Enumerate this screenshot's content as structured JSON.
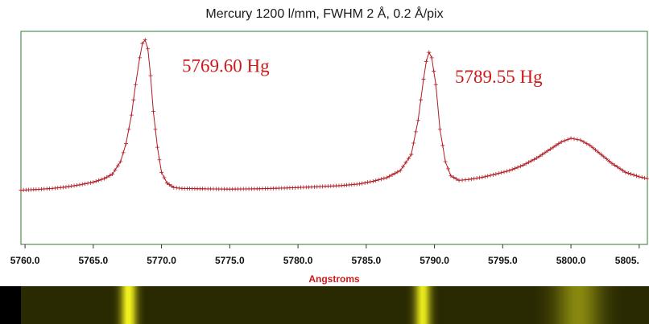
{
  "chart_data": {
    "type": "line",
    "title": "Mercury 1200 l/mm, FWHM 2 Å, 0.2 Å/pix",
    "xlabel": "Angstroms",
    "ylabel": "",
    "xlim": [
      5759.7,
      5805.6
    ],
    "ylim": [
      0,
      1.0
    ],
    "x_ticks": [
      5760,
      5765,
      5770,
      5775,
      5780,
      5785,
      5790,
      5795,
      5800,
      5805
    ],
    "x_tick_labels": [
      "5760.0",
      "5765.0",
      "5770.0",
      "5775.0",
      "5780.0",
      "5785.0",
      "5790.0",
      "5795.0",
      "5800.0",
      "5805."
    ],
    "grid": false,
    "legend": "none",
    "series": [
      {
        "marker": "plus",
        "color": "#b01c24",
        "x": [
          5759.7,
          5761.0,
          5762.0,
          5763.0,
          5764.0,
          5765.0,
          5765.8,
          5766.4,
          5767.0,
          5767.4,
          5767.8,
          5768.1,
          5768.4,
          5768.6,
          5768.8,
          5769.0,
          5769.2,
          5769.4,
          5769.7,
          5770.0,
          5770.4,
          5770.9,
          5771.5,
          5773.0,
          5775.0,
          5777.0,
          5779.0,
          5781.0,
          5783.0,
          5784.5,
          5785.5,
          5786.5,
          5787.5,
          5788.3,
          5788.8,
          5789.2,
          5789.4,
          5789.6,
          5789.8,
          5790.1,
          5790.4,
          5790.8,
          5791.2,
          5791.8,
          5792.5,
          5793.5,
          5794.5,
          5795.5,
          5796.5,
          5797.5,
          5798.5,
          5799.3,
          5800.0,
          5800.7,
          5801.4,
          5802.2,
          5803.0,
          5804.0,
          5805.0,
          5805.6
        ],
        "y": [
          0.16,
          0.165,
          0.17,
          0.178,
          0.19,
          0.205,
          0.225,
          0.25,
          0.32,
          0.42,
          0.58,
          0.75,
          0.9,
          0.98,
          1.0,
          0.95,
          0.8,
          0.6,
          0.4,
          0.26,
          0.2,
          0.175,
          0.17,
          0.168,
          0.166,
          0.168,
          0.172,
          0.178,
          0.185,
          0.195,
          0.21,
          0.23,
          0.27,
          0.36,
          0.55,
          0.78,
          0.88,
          0.93,
          0.9,
          0.75,
          0.5,
          0.32,
          0.24,
          0.215,
          0.22,
          0.232,
          0.25,
          0.27,
          0.3,
          0.34,
          0.39,
          0.43,
          0.45,
          0.44,
          0.41,
          0.36,
          0.31,
          0.26,
          0.235,
          0.225
        ]
      }
    ],
    "annotations": [
      {
        "text": "5769.60 Hg",
        "x": 5771.5,
        "y": 0.82,
        "color": "#cc1a1a"
      },
      {
        "text": "5789.55 Hg",
        "x": 5791.5,
        "y": 0.76,
        "color": "#cc1a1a"
      }
    ],
    "spectrum_strip": {
      "background": "#1c1c00",
      "lines": [
        {
          "x": 5768.8,
          "intensity": 1.0
        },
        {
          "x": 5789.6,
          "intensity": 0.93
        },
        {
          "x": 5800.6,
          "intensity": 0.45
        }
      ]
    },
    "colors": {
      "frame": "#2e7d2e",
      "line": "#b01c24",
      "xlabel": "#cc1a1a",
      "annotation": "#cc1a1a",
      "title": "#1a1a1a"
    }
  }
}
